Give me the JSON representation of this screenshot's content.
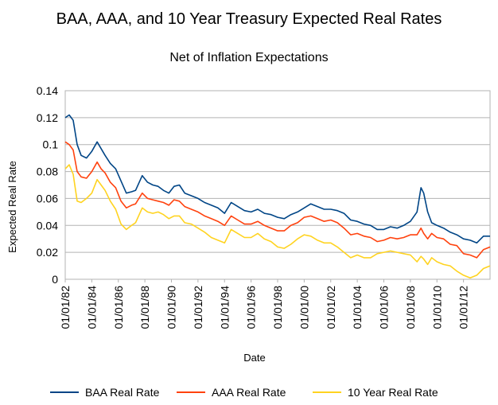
{
  "chart_data": {
    "type": "line",
    "title": "BAA, AAA, and 10 Year Treasury Expected Real Rates",
    "subtitle": "Net of Inflation Expectations",
    "xlabel": "Date",
    "ylabel": "Expected Real Rate",
    "x_range": [
      1982.0,
      2014.0
    ],
    "ylim": [
      0,
      0.14
    ],
    "y_ticks": [
      "0",
      "0.02",
      "0.04",
      "0.06",
      "0.08",
      "0.1",
      "0.12",
      "0.14"
    ],
    "x_ticks": [
      "01/01/82",
      "01/01/84",
      "01/01/86",
      "01/01/88",
      "01/01/90",
      "01/01/92",
      "01/01/94",
      "01/01/96",
      "01/01/98",
      "01/01/00",
      "01/01/02",
      "01/01/04",
      "01/01/06",
      "01/01/08",
      "01/01/10",
      "01/01/12"
    ],
    "grid": "horizontal",
    "legend_position": "bottom",
    "series": [
      {
        "name": "BAA Real Rate",
        "color": "#004586",
        "x": [
          1982.0,
          1982.3,
          1982.6,
          1982.9,
          1983.2,
          1983.6,
          1984.0,
          1984.4,
          1984.7,
          1985.0,
          1985.4,
          1985.8,
          1986.2,
          1986.6,
          1987.0,
          1987.3,
          1987.8,
          1988.2,
          1988.6,
          1989.0,
          1989.4,
          1989.8,
          1990.2,
          1990.6,
          1991.0,
          1991.5,
          1992.0,
          1992.5,
          1993.0,
          1993.5,
          1994.0,
          1994.5,
          1995.0,
          1995.5,
          1996.0,
          1996.5,
          1997.0,
          1997.5,
          1998.0,
          1998.5,
          1999.0,
          1999.5,
          2000.0,
          2000.5,
          2001.0,
          2001.5,
          2002.0,
          2002.5,
          2003.0,
          2003.5,
          2004.0,
          2004.5,
          2005.0,
          2005.5,
          2006.0,
          2006.5,
          2007.0,
          2007.5,
          2008.0,
          2008.5,
          2008.8,
          2009.0,
          2009.3,
          2009.6,
          2010.0,
          2010.5,
          2011.0,
          2011.5,
          2012.0,
          2012.5,
          2013.0,
          2013.5,
          2014.0
        ],
        "values": [
          0.12,
          0.122,
          0.118,
          0.1,
          0.092,
          0.09,
          0.095,
          0.102,
          0.097,
          0.092,
          0.086,
          0.082,
          0.073,
          0.064,
          0.065,
          0.066,
          0.077,
          0.072,
          0.07,
          0.069,
          0.066,
          0.064,
          0.069,
          0.07,
          0.064,
          0.062,
          0.06,
          0.057,
          0.055,
          0.053,
          0.049,
          0.057,
          0.054,
          0.051,
          0.05,
          0.052,
          0.049,
          0.048,
          0.046,
          0.045,
          0.048,
          0.05,
          0.053,
          0.056,
          0.054,
          0.052,
          0.052,
          0.051,
          0.049,
          0.044,
          0.043,
          0.041,
          0.04,
          0.037,
          0.037,
          0.039,
          0.038,
          0.04,
          0.043,
          0.05,
          0.068,
          0.064,
          0.05,
          0.042,
          0.04,
          0.038,
          0.035,
          0.033,
          0.03,
          0.029,
          0.027,
          0.032,
          0.032
        ]
      },
      {
        "name": "AAA Real Rate",
        "color": "#ff420e",
        "x": [
          1982.0,
          1982.3,
          1982.6,
          1982.9,
          1983.2,
          1983.6,
          1984.0,
          1984.4,
          1984.7,
          1985.0,
          1985.4,
          1985.8,
          1986.2,
          1986.6,
          1987.0,
          1987.3,
          1987.8,
          1988.2,
          1988.6,
          1989.0,
          1989.4,
          1989.8,
          1990.2,
          1990.6,
          1991.0,
          1991.5,
          1992.0,
          1992.5,
          1993.0,
          1993.5,
          1994.0,
          1994.5,
          1995.0,
          1995.5,
          1996.0,
          1996.5,
          1997.0,
          1997.5,
          1998.0,
          1998.5,
          1999.0,
          1999.5,
          2000.0,
          2000.5,
          2001.0,
          2001.5,
          2002.0,
          2002.5,
          2003.0,
          2003.5,
          2004.0,
          2004.5,
          2005.0,
          2005.5,
          2006.0,
          2006.5,
          2007.0,
          2007.5,
          2008.0,
          2008.5,
          2008.8,
          2009.0,
          2009.3,
          2009.6,
          2010.0,
          2010.5,
          2011.0,
          2011.5,
          2012.0,
          2012.5,
          2013.0,
          2013.5,
          2014.0
        ],
        "values": [
          0.102,
          0.1,
          0.096,
          0.08,
          0.076,
          0.075,
          0.08,
          0.087,
          0.082,
          0.079,
          0.072,
          0.068,
          0.058,
          0.053,
          0.055,
          0.056,
          0.064,
          0.06,
          0.059,
          0.058,
          0.057,
          0.055,
          0.059,
          0.058,
          0.054,
          0.052,
          0.05,
          0.047,
          0.045,
          0.043,
          0.04,
          0.047,
          0.044,
          0.041,
          0.041,
          0.043,
          0.04,
          0.038,
          0.036,
          0.036,
          0.04,
          0.042,
          0.046,
          0.047,
          0.045,
          0.043,
          0.044,
          0.042,
          0.038,
          0.033,
          0.034,
          0.032,
          0.031,
          0.028,
          0.029,
          0.031,
          0.03,
          0.031,
          0.033,
          0.033,
          0.038,
          0.034,
          0.03,
          0.034,
          0.031,
          0.03,
          0.026,
          0.025,
          0.019,
          0.018,
          0.016,
          0.022,
          0.024
        ]
      },
      {
        "name": "10 Year Real Rate",
        "color": "#ffd320",
        "x": [
          1982.0,
          1982.3,
          1982.6,
          1982.9,
          1983.2,
          1983.6,
          1984.0,
          1984.4,
          1984.7,
          1985.0,
          1985.4,
          1985.8,
          1986.2,
          1986.6,
          1987.0,
          1987.3,
          1987.8,
          1988.2,
          1988.6,
          1989.0,
          1989.4,
          1989.8,
          1990.2,
          1990.6,
          1991.0,
          1991.5,
          1992.0,
          1992.5,
          1993.0,
          1993.5,
          1994.0,
          1994.5,
          1995.0,
          1995.5,
          1996.0,
          1996.5,
          1997.0,
          1997.5,
          1998.0,
          1998.5,
          1999.0,
          1999.5,
          2000.0,
          2000.5,
          2001.0,
          2001.5,
          2002.0,
          2002.5,
          2003.0,
          2003.5,
          2004.0,
          2004.5,
          2005.0,
          2005.5,
          2006.0,
          2006.5,
          2007.0,
          2007.5,
          2008.0,
          2008.5,
          2008.8,
          2009.0,
          2009.3,
          2009.6,
          2010.0,
          2010.5,
          2011.0,
          2011.5,
          2012.0,
          2012.5,
          2013.0,
          2013.5,
          2014.0
        ],
        "values": [
          0.082,
          0.085,
          0.078,
          0.058,
          0.057,
          0.06,
          0.064,
          0.074,
          0.07,
          0.066,
          0.058,
          0.052,
          0.041,
          0.037,
          0.04,
          0.042,
          0.053,
          0.05,
          0.049,
          0.05,
          0.048,
          0.045,
          0.047,
          0.047,
          0.042,
          0.041,
          0.038,
          0.035,
          0.031,
          0.029,
          0.027,
          0.037,
          0.034,
          0.031,
          0.031,
          0.034,
          0.03,
          0.028,
          0.024,
          0.023,
          0.026,
          0.03,
          0.033,
          0.032,
          0.029,
          0.027,
          0.027,
          0.024,
          0.02,
          0.016,
          0.018,
          0.016,
          0.016,
          0.019,
          0.02,
          0.021,
          0.02,
          0.019,
          0.018,
          0.013,
          0.017,
          0.015,
          0.011,
          0.016,
          0.013,
          0.011,
          0.01,
          0.006,
          0.003,
          0.001,
          0.003,
          0.008,
          0.01
        ]
      }
    ]
  }
}
